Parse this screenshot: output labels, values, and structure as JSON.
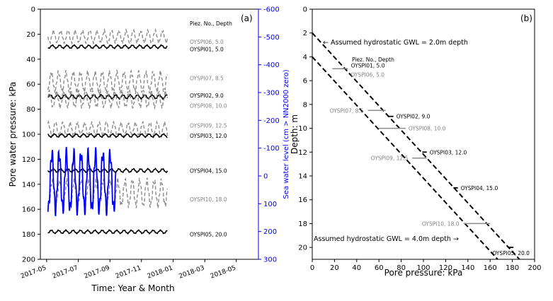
{
  "chart_data": [
    {
      "type": "line",
      "panel_label": "(a)",
      "xlabel": "Time: Year & Month",
      "ylabel": "Pore water pressure: kPa",
      "y2label": "Sea water level (cm > NN2000 zero)",
      "xlim": [
        2017.3,
        2018.45
      ],
      "ylim": [
        200,
        0
      ],
      "y2lim": [
        300,
        -600
      ],
      "x_ticks": [
        {
          "value": 2017.333,
          "label": "2017-05"
        },
        {
          "value": 2017.5,
          "label": "2017-07"
        },
        {
          "value": 2017.667,
          "label": "2017-09"
        },
        {
          "value": 2017.833,
          "label": "2017-11"
        },
        {
          "value": 2018.0,
          "label": "2018-01"
        },
        {
          "value": 2018.167,
          "label": "2018-03"
        },
        {
          "value": 2018.333,
          "label": "2018-05"
        }
      ],
      "y_ticks": [
        0,
        20,
        40,
        60,
        80,
        100,
        120,
        140,
        160,
        180,
        200
      ],
      "y2_ticks": [
        -600,
        -500,
        -400,
        -300,
        -200,
        -100,
        0,
        100,
        200,
        300
      ],
      "legend_header": "Piez. No., Depth",
      "x_start": 2017.34,
      "x_end": 2017.97,
      "series": [
        {
          "name": "OYSPI06, 5.0",
          "style": "dashed",
          "color": "#8c8c8c",
          "mean": 22,
          "amp": 4.5,
          "period_days": 14,
          "label_y": 26,
          "end_x": 2017.97
        },
        {
          "name": "OYSPI01, 5.0",
          "style": "solid",
          "color": "#000000",
          "mean": 30,
          "amp": 1.2,
          "period_days": 14,
          "label_y": 32,
          "end_x": 2017.97
        },
        {
          "name": "OYSPI07, 8.5",
          "style": "dashed",
          "color": "#8c8c8c",
          "mean": 58,
          "amp": 7.5,
          "period_days": 14,
          "label_y": 55,
          "end_x": 2017.97
        },
        {
          "name": "OYSPI02, 9.0",
          "style": "solid",
          "color": "#000000",
          "mean": 70,
          "amp": 1.5,
          "period_days": 14,
          "label_y": 69,
          "end_x": 2017.97
        },
        {
          "name": "OYSPI08, 10.0",
          "style": "dashed",
          "color": "#8c8c8c",
          "mean": 72,
          "amp": 6,
          "period_days": 14,
          "label_y": 77,
          "end_x": 2017.97
        },
        {
          "name": "OYSPI09, 12.5",
          "style": "dashed",
          "color": "#8c8c8c",
          "mean": 96,
          "amp": 5,
          "period_days": 14,
          "label_y": 93,
          "end_x": 2017.97
        },
        {
          "name": "OYSPI03, 12.0",
          "style": "solid",
          "color": "#000000",
          "mean": 101,
          "amp": 1.2,
          "period_days": 14,
          "label_y": 101,
          "end_x": 2017.97
        },
        {
          "name": "OYSPI04, 15.0",
          "style": "solid",
          "color": "#000000",
          "mean": 129,
          "amp": 1.3,
          "period_days": 14,
          "label_y": 129,
          "end_x": 2017.97
        },
        {
          "name": "OYSPI10, 18.0",
          "style": "dashed",
          "color": "#8c8c8c",
          "mean": 147,
          "amp": 10,
          "period_days": 14,
          "label_y": 152,
          "end_x": 2017.97
        },
        {
          "name": "OYSPI05, 20.0",
          "style": "solid",
          "color": "#000000",
          "mean": 178,
          "amp": 1.2,
          "period_days": 14,
          "label_y": 180,
          "end_x": 2017.97
        }
      ],
      "sea_level": {
        "name": "Sea water level",
        "color": "#0000ff",
        "axis": "right",
        "mean": 20,
        "amp": 100,
        "period_days": 14,
        "x_start": 2017.34,
        "x_end": 2017.7
      }
    },
    {
      "type": "scatter",
      "panel_label": "(b)",
      "xlabel": "Pore pressure: kPa",
      "ylabel": "Depth: m",
      "xlim": [
        0,
        200
      ],
      "ylim": [
        21,
        0
      ],
      "x_ticks": [
        0,
        20,
        40,
        60,
        80,
        100,
        120,
        140,
        160,
        180,
        200
      ],
      "y_ticks": [
        0,
        2,
        4,
        6,
        8,
        10,
        12,
        14,
        16,
        18,
        20
      ],
      "hydrostatic_lines": [
        {
          "gwl_m": 2.0,
          "label": "Assumed hydrostatic GWL = 2.0m depth",
          "arrow": "←"
        },
        {
          "gwl_m": 4.0,
          "label": "Assumed hydrostatic GWL = 4.0m depth",
          "arrow": "→"
        }
      ],
      "legend_header": "Piez. No., Depth",
      "points": [
        {
          "name": "OYSPI01, 5.0",
          "depth": 5.0,
          "pmin": 29,
          "pmax": 31,
          "color": "#000000",
          "label_side": "top"
        },
        {
          "name": "OYSPI06, 5.0",
          "depth": 5.0,
          "pmin": 18,
          "pmax": 32,
          "color": "#8c8c8c",
          "label_side": "below"
        },
        {
          "name": "OYSPI07, 8.5",
          "depth": 8.5,
          "pmin": 50,
          "pmax": 66,
          "color": "#8c8c8c",
          "label_side": "left"
        },
        {
          "name": "OYSPI02, 9.0",
          "depth": 9.0,
          "pmin": 68,
          "pmax": 73,
          "color": "#000000",
          "label_side": "right"
        },
        {
          "name": "OYSPI08, 10.0",
          "depth": 10.0,
          "pmin": 60,
          "pmax": 84,
          "color": "#8c8c8c",
          "label_side": "right"
        },
        {
          "name": "OYSPI03, 12.0",
          "depth": 12.0,
          "pmin": 99,
          "pmax": 103,
          "color": "#000000",
          "label_side": "right"
        },
        {
          "name": "OYSPI09, 12.5",
          "depth": 12.5,
          "pmin": 90,
          "pmax": 103,
          "color": "#8c8c8c",
          "label_side": "left"
        },
        {
          "name": "OYSPI04, 15.0",
          "depth": 15.0,
          "pmin": 127,
          "pmax": 131,
          "color": "#000000",
          "label_side": "right"
        },
        {
          "name": "OYSPI10, 18.0",
          "depth": 18.0,
          "pmin": 136,
          "pmax": 160,
          "color": "#8c8c8c",
          "label_side": "left"
        },
        {
          "name": "OYSPI05, 20.0",
          "depth": 20.0,
          "pmin": 176,
          "pmax": 181,
          "color": "#000000",
          "label_side": "below"
        }
      ]
    }
  ]
}
